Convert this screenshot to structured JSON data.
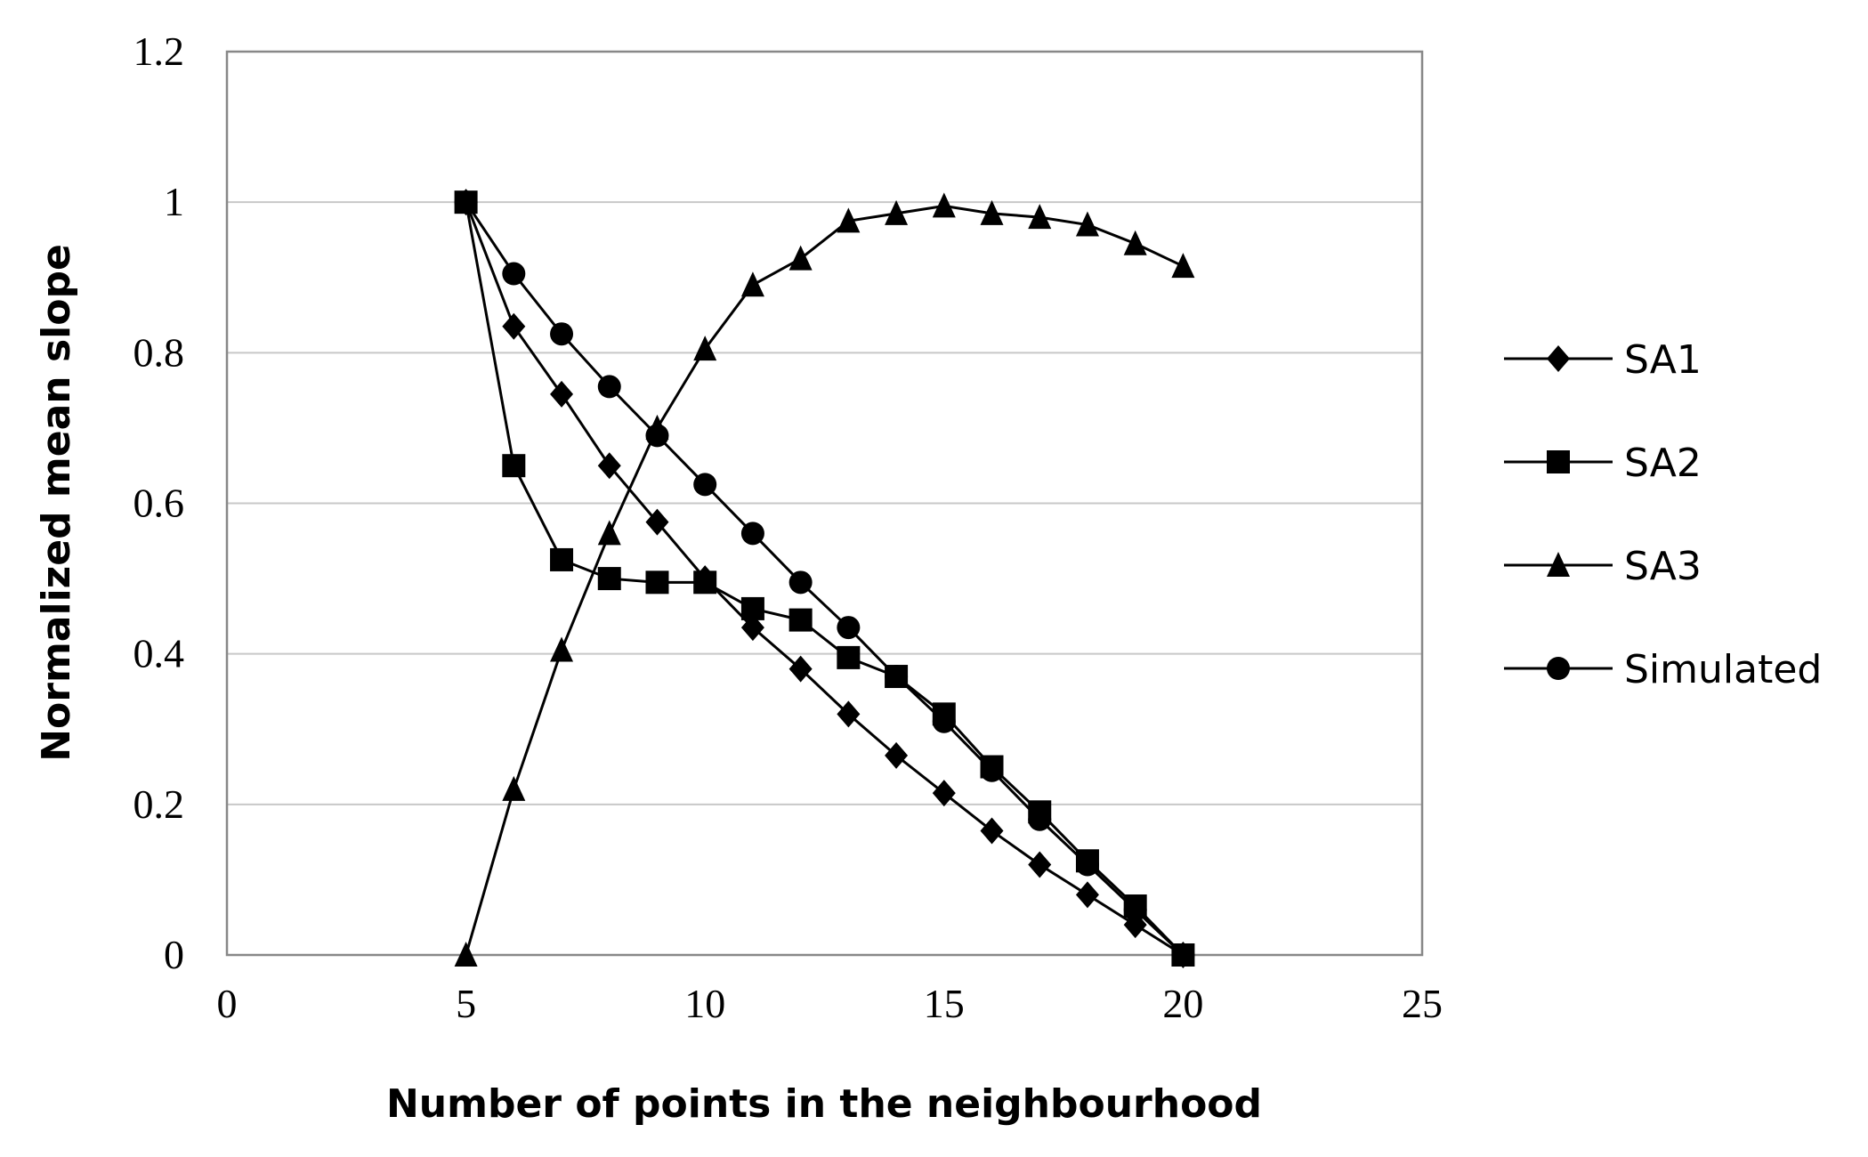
{
  "chart_data": {
    "type": "line",
    "xlabel": "Number of points in the neighbourhood",
    "ylabel": "Normalized mean slope",
    "x": [
      5,
      6,
      7,
      8,
      9,
      10,
      11,
      12,
      13,
      14,
      15,
      16,
      17,
      18,
      19,
      20
    ],
    "series": [
      {
        "name": "SA1",
        "color": "#000000",
        "marker": "diamond",
        "values": [
          1,
          0.835,
          0.745,
          0.65,
          0.575,
          0.5,
          0.435,
          0.38,
          0.32,
          0.265,
          0.215,
          0.165,
          0.12,
          0.08,
          0.04,
          0
        ]
      },
      {
        "name": "SA2",
        "color": "#000000",
        "marker": "square",
        "values": [
          1,
          0.65,
          0.525,
          0.5,
          0.495,
          0.495,
          0.46,
          0.445,
          0.395,
          0.37,
          0.32,
          0.25,
          0.19,
          0.125,
          0.065,
          0
        ]
      },
      {
        "name": "SA3",
        "color": "#000000",
        "marker": "triangle",
        "values": [
          0,
          0.22,
          0.405,
          0.56,
          0.7,
          0.805,
          0.89,
          0.925,
          0.975,
          0.985,
          0.995,
          0.985,
          0.98,
          0.97,
          0.945,
          0.915
        ]
      },
      {
        "name": "Simulated",
        "color": "#000000",
        "marker": "circle",
        "values": [
          1,
          0.905,
          0.825,
          0.755,
          0.69,
          0.625,
          0.56,
          0.495,
          0.435,
          0.37,
          0.31,
          0.245,
          0.18,
          0.12,
          0.06,
          0
        ]
      }
    ],
    "xlim": [
      0,
      25
    ],
    "xticks": [
      0,
      5,
      10,
      15,
      20,
      25
    ],
    "ylim": [
      0,
      1.2
    ],
    "yticks": [
      0,
      0.2,
      0.4,
      0.6,
      0.8,
      1,
      1.2
    ],
    "grid": true,
    "legend": "right"
  }
}
